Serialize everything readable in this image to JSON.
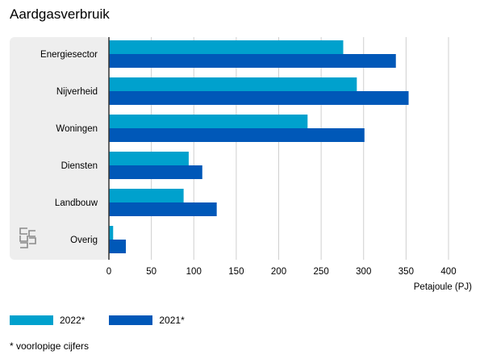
{
  "chart_data": {
    "type": "bar",
    "orientation": "horizontal",
    "title": "Aardgasverbruik",
    "xlabel": "Petajoule (PJ)",
    "ylabel": "",
    "xlim": [
      0,
      400
    ],
    "xticks": [
      "0",
      "50",
      "100",
      "150",
      "200",
      "250",
      "300",
      "350",
      "400"
    ],
    "categories": [
      "Energiesector",
      "Nijverheid",
      "Woningen",
      "Diensten",
      "Landbouw",
      "Overig"
    ],
    "series": [
      {
        "name": "2022*",
        "color": "#00a1cd",
        "values": [
          276,
          292,
          234,
          94,
          88,
          5
        ]
      },
      {
        "name": "2021*",
        "color": "#0058b8",
        "values": [
          338,
          353,
          301,
          110,
          127,
          20
        ]
      }
    ],
    "grid": true,
    "legend_position": "bottom-left",
    "footnote": "* voorlopige cijfers"
  }
}
